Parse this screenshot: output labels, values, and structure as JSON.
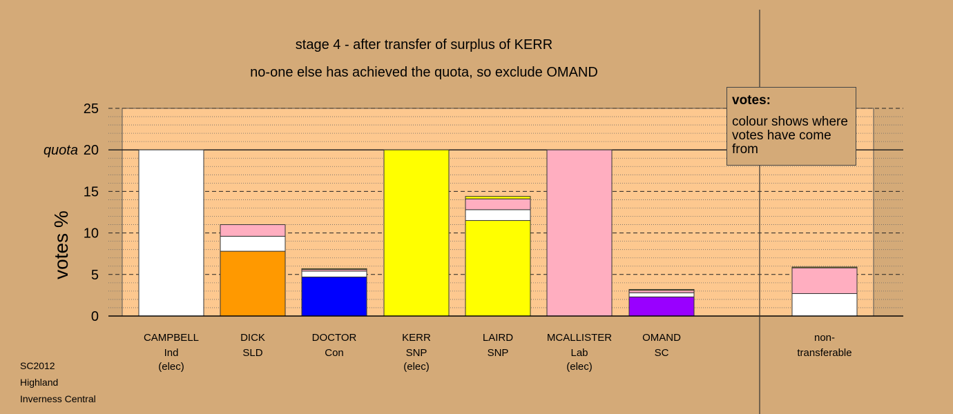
{
  "title_line1": "stage 4 - after transfer of surplus of KERR",
  "title_line2": "no-one else has achieved the quota, so exclude OMAND",
  "footer": [
    "SC2012",
    "Highland",
    "Inverness Central"
  ],
  "legend": {
    "title": "votes:",
    "text": "colour shows where votes have come from"
  },
  "colors": {
    "background": "#d4aa78",
    "plot_area": "#fdc88f",
    "independent": "#ffffff",
    "sld": "#ff9900",
    "conservative": "#0000ff",
    "snp": "#ffff00",
    "labour": "#ffaec0",
    "sc": "#9900ff"
  },
  "chart_data": {
    "type": "bar",
    "stacked": true,
    "ylabel": "votes %",
    "ylim": [
      0,
      25
    ],
    "yticks": [
      0,
      5,
      10,
      15,
      20,
      25
    ],
    "quota": 20,
    "quota_label": "quota",
    "grid": true,
    "candidates": [
      {
        "name": "CAMPBELL",
        "party": "Ind",
        "status": "(elec)",
        "segments": [
          {
            "source": "Ind",
            "color": "#ffffff",
            "value": 20
          }
        ]
      },
      {
        "name": "DICK",
        "party": "SLD",
        "status": "",
        "segments": [
          {
            "source": "SLD",
            "color": "#ff9900",
            "value": 7.8
          },
          {
            "source": "Ind",
            "color": "#ffffff",
            "value": 1.8
          },
          {
            "source": "Lab",
            "color": "#ffaec0",
            "value": 1.4
          }
        ]
      },
      {
        "name": "DOCTOR",
        "party": "Con",
        "status": "",
        "segments": [
          {
            "source": "Con",
            "color": "#0000ff",
            "value": 4.7
          },
          {
            "source": "Ind",
            "color": "#ffffff",
            "value": 0.7
          },
          {
            "source": "Lab",
            "color": "#ffaec0",
            "value": 0.2
          },
          {
            "source": "SNP",
            "color": "#ffff00",
            "value": 0.1
          }
        ]
      },
      {
        "name": "KERR",
        "party": "SNP",
        "status": "(elec)",
        "segments": [
          {
            "source": "SNP",
            "color": "#ffff00",
            "value": 20
          }
        ]
      },
      {
        "name": "LAIRD",
        "party": "SNP",
        "status": "",
        "segments": [
          {
            "source": "SNP",
            "color": "#ffff00",
            "value": 11.5
          },
          {
            "source": "Ind",
            "color": "#ffffff",
            "value": 1.3
          },
          {
            "source": "Lab",
            "color": "#ffaec0",
            "value": 1.3
          },
          {
            "source": "SNP",
            "color": "#ffff00",
            "value": 0.3
          }
        ]
      },
      {
        "name": "MCALLISTER",
        "party": "Lab",
        "status": "(elec)",
        "segments": [
          {
            "source": "Lab",
            "color": "#ffaec0",
            "value": 20
          }
        ]
      },
      {
        "name": "OMAND",
        "party": "SC",
        "status": "",
        "segments": [
          {
            "source": "SC",
            "color": "#9900ff",
            "value": 2.3
          },
          {
            "source": "Ind",
            "color": "#ffffff",
            "value": 0.5
          },
          {
            "source": "Lab",
            "color": "#ffaec0",
            "value": 0.3
          },
          {
            "source": "SNP",
            "color": "#ffff00",
            "value": 0.1
          }
        ]
      }
    ],
    "nontransferable": {
      "label1": "non-",
      "label2": "transferable",
      "segments": [
        {
          "source": "Ind",
          "color": "#ffffff",
          "value": 2.7
        },
        {
          "source": "Lab",
          "color": "#ffaec0",
          "value": 3.1
        },
        {
          "source": "SNP",
          "color": "#ffff00",
          "value": 0.1
        }
      ]
    }
  }
}
